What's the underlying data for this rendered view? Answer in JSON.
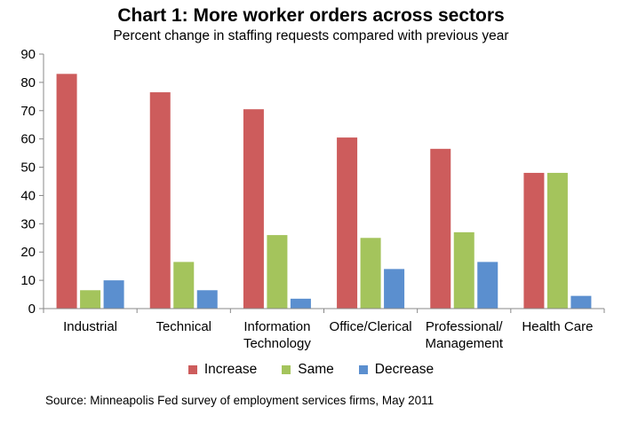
{
  "chart_data": {
    "type": "bar",
    "title": "Chart 1: More worker orders across sectors",
    "subtitle": "Percent change in staffing requests compared with previous year",
    "categories": [
      [
        "Industrial"
      ],
      [
        "Technical"
      ],
      [
        "Information",
        "Technology"
      ],
      [
        "Office/Clerical"
      ],
      [
        "Professional/",
        "Management"
      ],
      [
        "Health Care"
      ]
    ],
    "series": [
      {
        "name": "Increase",
        "color": "#cd5c5c",
        "values": [
          83,
          76.5,
          70.5,
          60.5,
          56.5,
          48
        ]
      },
      {
        "name": "Same",
        "color": "#a4c45c",
        "values": [
          6.5,
          16.5,
          26,
          25,
          27,
          48
        ]
      },
      {
        "name": "Decrease",
        "color": "#5b8fcf",
        "values": [
          10,
          6.5,
          3.5,
          14,
          16.5,
          4.5
        ]
      }
    ],
    "ylim": [
      0,
      90
    ],
    "yticks": [
      0,
      10,
      20,
      30,
      40,
      50,
      60,
      70,
      80,
      90
    ],
    "xlabel": "",
    "ylabel": "",
    "grid": false,
    "legend": "bottom"
  },
  "source": "Source: Minneapolis Fed survey of employment services firms, May 2011"
}
